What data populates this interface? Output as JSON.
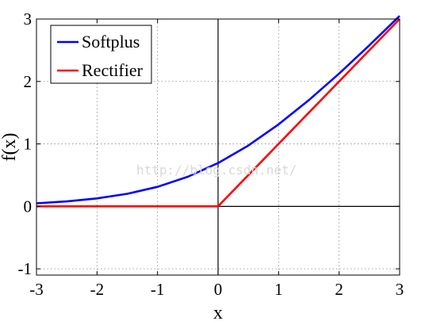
{
  "chart_data": {
    "type": "line",
    "title": "",
    "xlabel": "x",
    "ylabel": "f(x)",
    "xlim": [
      -3,
      3
    ],
    "ylim": [
      -1.1,
      3
    ],
    "x_ticks": [
      "-3",
      "-2",
      "-1",
      "0",
      "1",
      "2",
      "3"
    ],
    "y_ticks": [
      "-1",
      "0",
      "1",
      "2",
      "3"
    ],
    "grid": true,
    "legend_position": "top-left",
    "series": [
      {
        "name": "Softplus",
        "color": "#0000ff",
        "x": [
          -3,
          -2.5,
          -2,
          -1.5,
          -1,
          -0.5,
          0,
          0.5,
          1,
          1.5,
          2,
          2.5,
          3
        ],
        "y": [
          0.049,
          0.079,
          0.127,
          0.201,
          0.313,
          0.474,
          0.693,
          0.974,
          1.313,
          1.701,
          2.127,
          2.579,
          3.049
        ]
      },
      {
        "name": "Rectifier",
        "color": "#ff0000",
        "x": [
          -3,
          0,
          3
        ],
        "y": [
          0,
          0,
          3
        ]
      }
    ],
    "annotations": [
      "http://blog.csdn.net/"
    ]
  }
}
